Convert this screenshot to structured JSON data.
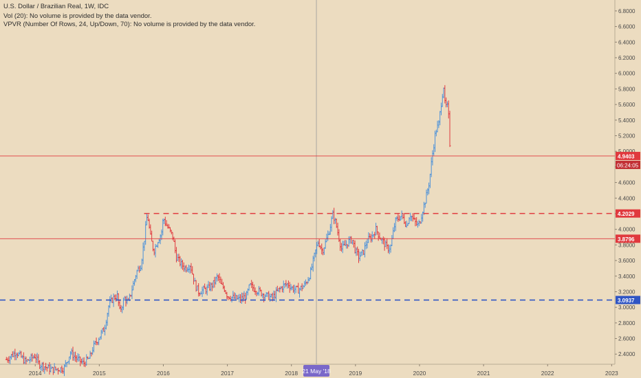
{
  "header": {
    "title": "U.S. Dollar / Brazilian Real, 1W, IDC",
    "vol_line": "Vol (20): No volume is provided by the data vendor.",
    "vpvr_line": "VPVR (Number Of Rows, 24, Up/Down, 70): No volume is provided by the data vendor."
  },
  "crosshair": {
    "date_label": "21 May '18",
    "year": 2018.39
  },
  "colors": {
    "background": "#ecdcc0",
    "up": "#4a90d9",
    "down": "#e0393e",
    "axis_text": "#4a4a4a"
  },
  "chart_data": {
    "type": "candlestick",
    "x_axis": {
      "ticks": [
        "2014",
        "2015",
        "2016",
        "2017",
        "2018",
        "2019",
        "2020",
        "2021",
        "2022",
        "2023"
      ],
      "range": [
        2013.45,
        2023.05
      ]
    },
    "y_axis": {
      "ticks": [
        "6.8000",
        "6.6000",
        "6.4000",
        "6.2000",
        "6.0000",
        "5.8000",
        "5.6000",
        "5.4000",
        "5.2000",
        "5.0000",
        "4.8000",
        "4.6000",
        "4.4000",
        "4.2000",
        "4.0000",
        "3.8000",
        "3.6000",
        "3.4000",
        "3.2000",
        "3.0000",
        "2.8000",
        "2.6000",
        "2.4000"
      ],
      "range": [
        2.27,
        6.94
      ]
    },
    "price_path": [
      [
        2013.55,
        2.33
      ],
      [
        2013.7,
        2.43
      ],
      [
        2013.85,
        2.3
      ],
      [
        2014.0,
        2.38
      ],
      [
        2014.05,
        2.28
      ],
      [
        2014.25,
        2.2
      ],
      [
        2014.45,
        2.22
      ],
      [
        2014.55,
        2.42
      ],
      [
        2014.65,
        2.34
      ],
      [
        2014.75,
        2.28
      ],
      [
        2014.85,
        2.35
      ],
      [
        2014.9,
        2.48
      ],
      [
        2015.0,
        2.62
      ],
      [
        2015.08,
        2.73
      ],
      [
        2015.15,
        3.03
      ],
      [
        2015.22,
        3.12
      ],
      [
        2015.28,
        3.15
      ],
      [
        2015.32,
        2.95
      ],
      [
        2015.4,
        3.12
      ],
      [
        2015.45,
        3.05
      ],
      [
        2015.5,
        3.2
      ],
      [
        2015.58,
        3.45
      ],
      [
        2015.65,
        3.55
      ],
      [
        2015.7,
        3.85
      ],
      [
        2015.75,
        4.2
      ],
      [
        2015.8,
        3.9
      ],
      [
        2015.85,
        3.72
      ],
      [
        2015.92,
        3.87
      ],
      [
        2015.97,
        3.95
      ],
      [
        2016.0,
        4.15
      ],
      [
        2016.05,
        4.05
      ],
      [
        2016.1,
        3.98
      ],
      [
        2016.15,
        3.9
      ],
      [
        2016.2,
        3.65
      ],
      [
        2016.28,
        3.55
      ],
      [
        2016.35,
        3.5
      ],
      [
        2016.42,
        3.55
      ],
      [
        2016.5,
        3.28
      ],
      [
        2016.55,
        3.2
      ],
      [
        2016.62,
        3.22
      ],
      [
        2016.7,
        3.24
      ],
      [
        2016.78,
        3.3
      ],
      [
        2016.85,
        3.4
      ],
      [
        2016.9,
        3.28
      ],
      [
        2016.95,
        3.25
      ],
      [
        2017.0,
        3.15
      ],
      [
        2017.1,
        3.12
      ],
      [
        2017.2,
        3.1
      ],
      [
        2017.3,
        3.15
      ],
      [
        2017.35,
        3.28
      ],
      [
        2017.4,
        3.25
      ],
      [
        2017.5,
        3.2
      ],
      [
        2017.6,
        3.15
      ],
      [
        2017.7,
        3.12
      ],
      [
        2017.8,
        3.22
      ],
      [
        2017.88,
        3.28
      ],
      [
        2017.95,
        3.3
      ],
      [
        2018.0,
        3.25
      ],
      [
        2018.1,
        3.22
      ],
      [
        2018.2,
        3.28
      ],
      [
        2018.25,
        3.35
      ],
      [
        2018.3,
        3.45
      ],
      [
        2018.37,
        3.7
      ],
      [
        2018.42,
        3.85
      ],
      [
        2018.48,
        3.72
      ],
      [
        2018.52,
        3.8
      ],
      [
        2018.58,
        3.95
      ],
      [
        2018.65,
        4.2
      ],
      [
        2018.7,
        4.05
      ],
      [
        2018.78,
        3.75
      ],
      [
        2018.85,
        3.8
      ],
      [
        2018.9,
        3.85
      ],
      [
        2018.95,
        3.87
      ],
      [
        2019.0,
        3.72
      ],
      [
        2019.05,
        3.65
      ],
      [
        2019.12,
        3.7
      ],
      [
        2019.18,
        3.85
      ],
      [
        2019.25,
        3.9
      ],
      [
        2019.32,
        4.0
      ],
      [
        2019.38,
        3.9
      ],
      [
        2019.45,
        3.82
      ],
      [
        2019.5,
        3.75
      ],
      [
        2019.55,
        3.78
      ],
      [
        2019.62,
        4.1
      ],
      [
        2019.68,
        4.15
      ],
      [
        2019.72,
        4.18
      ],
      [
        2019.8,
        4.05
      ],
      [
        2019.85,
        4.2
      ],
      [
        2019.92,
        4.1
      ],
      [
        2019.97,
        4.05
      ],
      [
        2020.0,
        4.08
      ],
      [
        2020.05,
        4.25
      ],
      [
        2020.1,
        4.4
      ],
      [
        2020.15,
        4.6
      ],
      [
        2020.2,
        4.95
      ],
      [
        2020.25,
        5.25
      ],
      [
        2020.3,
        5.35
      ],
      [
        2020.35,
        5.7
      ],
      [
        2020.38,
        5.85
      ],
      [
        2020.4,
        5.55
      ],
      [
        2020.43,
        5.6
      ],
      [
        2020.46,
        5.4
      ],
      [
        2020.48,
        4.94
      ]
    ],
    "horizontal_levels": [
      {
        "price": 4.9403,
        "label": "4.9403",
        "style": "solid"
      },
      {
        "price": 3.8796,
        "label": "3.8796",
        "style": "solid"
      },
      {
        "price": 4.2029,
        "label": "4.2029",
        "style": "dashed"
      },
      {
        "price": 3.0937,
        "label": "3.0937",
        "style": "dashed"
      }
    ],
    "countdown_label": "06:24:05"
  }
}
